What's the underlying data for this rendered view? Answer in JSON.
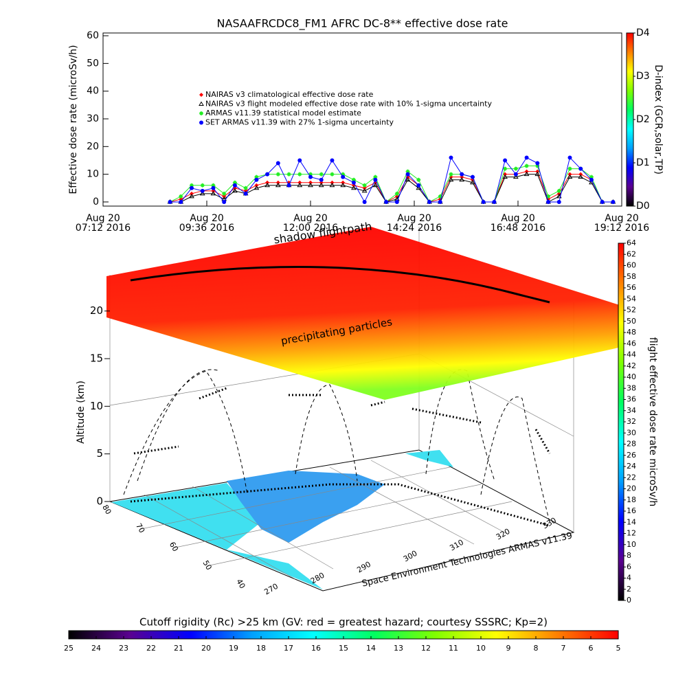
{
  "chart_data": [
    {
      "type": "line",
      "title": "NASAAFRCDC8_FM1 AFRC DC-8** effective dose rate",
      "ylabel": "Effective dose rate (microSv/h)",
      "x": [
        8.75,
        9.0,
        9.25,
        9.5,
        9.75,
        10.0,
        10.25,
        10.5,
        10.75,
        11.0,
        11.25,
        11.5,
        11.75,
        12.0,
        12.25,
        12.5,
        12.75,
        13.0,
        13.25,
        13.5,
        13.75,
        14.0,
        14.25,
        14.5,
        14.75,
        15.0,
        15.25,
        15.5,
        15.75,
        16.0,
        16.25,
        16.5,
        16.75,
        17.0,
        17.25,
        17.5,
        17.75,
        18.0,
        18.25,
        18.5,
        18.75,
        19.0
      ],
      "xlim": [
        7.2,
        19.2
      ],
      "xticks": [
        {
          "value": 7.2,
          "label": [
            "Aug 20",
            "07:12 2016"
          ]
        },
        {
          "value": 9.6,
          "label": [
            "Aug 20",
            "09:36 2016"
          ]
        },
        {
          "value": 12.0,
          "label": [
            "Aug 20",
            "12:00 2016"
          ]
        },
        {
          "value": 14.4,
          "label": [
            "Aug 20",
            "14:24 2016"
          ]
        },
        {
          "value": 16.8,
          "label": [
            "Aug 20",
            "16:48 2016"
          ]
        },
        {
          "value": 19.2,
          "label": [
            "Aug 20",
            "19:12 2016"
          ]
        }
      ],
      "ylim": [
        -1.5,
        61
      ],
      "yticks": [
        0,
        10,
        20,
        30,
        40,
        50,
        60
      ],
      "series": [
        {
          "name": "NAIRAS v3 climatological effective dose rate",
          "color": "#ff0000",
          "marker": "diamond",
          "values": [
            0,
            1,
            3,
            4,
            4,
            2,
            5,
            4,
            6,
            7,
            7,
            7,
            7,
            7,
            7,
            7,
            7,
            6,
            5,
            7,
            0,
            2,
            9,
            6,
            0,
            1,
            9,
            9,
            8,
            0,
            0,
            10,
            10,
            11,
            11,
            1,
            3,
            10,
            10,
            8,
            0,
            0
          ]
        },
        {
          "name": "NAIRAS v3 flight modeled effective dose rate with 10% 1-sigma uncertainty",
          "color": "#000000",
          "marker": "triangle",
          "values": [
            0,
            0,
            2,
            3,
            3,
            1,
            4,
            3,
            5,
            6,
            6,
            6,
            6,
            6,
            6,
            6,
            6,
            5,
            4,
            6,
            0,
            1,
            8,
            5,
            0,
            0,
            8,
            8,
            7,
            0,
            0,
            9,
            9,
            10,
            10,
            0,
            2,
            9,
            9,
            7,
            0,
            0
          ]
        },
        {
          "name": "ARMAS v11.39 statistical model estimate",
          "color": "#22ee22",
          "marker": "asterisk",
          "values": [
            0,
            2,
            6,
            6,
            6,
            3,
            7,
            5,
            9,
            10,
            10,
            10,
            10,
            10,
            10,
            10,
            10,
            8,
            6,
            9,
            0,
            3,
            11,
            8,
            0,
            2,
            10,
            10,
            9,
            0,
            0,
            12,
            12,
            13,
            13,
            2,
            4,
            12,
            12,
            9,
            0,
            0
          ]
        },
        {
          "name": "SET ARMAS v11.39 with 27% 1-sigma uncertainty",
          "color": "#0000ff",
          "marker": "circle",
          "values": [
            0,
            0,
            5,
            4,
            5,
            0,
            6,
            3,
            8,
            10,
            14,
            6,
            15,
            9,
            8,
            15,
            9,
            7,
            0,
            8,
            0,
            0,
            10,
            6,
            0,
            0,
            16,
            10,
            9,
            0,
            0,
            15,
            10,
            16,
            14,
            0,
            0,
            16,
            12,
            8,
            0,
            0
          ]
        }
      ]
    },
    {
      "type": "colorbar",
      "orientation": "vertical",
      "label": "D-index (GCR,solar,TP)",
      "colors": [
        "#000000",
        "#5a0090",
        "#0000ff",
        "#00a0ff",
        "#00ffff",
        "#00ff60",
        "#80ff00",
        "#ffff00",
        "#ff8000",
        "#ff0000"
      ],
      "ylim": [
        0,
        4
      ],
      "yticks": [
        {
          "value": 0,
          "label": "D0"
        },
        {
          "value": 1,
          "label": "D1"
        },
        {
          "value": 2,
          "label": "D2"
        },
        {
          "value": 3,
          "label": "D3"
        },
        {
          "value": 4,
          "label": "D4"
        }
      ]
    },
    {
      "type": "surface3d",
      "annotations": [
        "shadow flightpath",
        "precipitating particles"
      ],
      "zlabel": "Altitude (km)",
      "zlim": [
        0,
        22
      ],
      "zticks": [
        0,
        5,
        10,
        15,
        20
      ],
      "ylim": [
        80,
        40
      ],
      "yticks": [
        80,
        70,
        60,
        50,
        40
      ],
      "xlim": [
        270,
        330
      ],
      "xticks": [
        270,
        280,
        290,
        300,
        310,
        320,
        330
      ],
      "credit": "Space Environment Technologies ARMAS v11.39"
    },
    {
      "type": "colorbar",
      "orientation": "vertical",
      "label": "flight effective dose rate microSv/h",
      "colors": [
        "#000000",
        "#5a0090",
        "#0000ff",
        "#00a0ff",
        "#00ffff",
        "#00ff60",
        "#80ff00",
        "#ffff00",
        "#ff8000",
        "#ff0000"
      ],
      "ylim": [
        0,
        64
      ],
      "yticks": [
        0,
        2,
        4,
        6,
        8,
        10,
        12,
        14,
        16,
        18,
        20,
        22,
        24,
        26,
        28,
        30,
        32,
        34,
        36,
        38,
        40,
        42,
        44,
        46,
        48,
        50,
        52,
        54,
        56,
        58,
        60,
        62,
        64
      ]
    },
    {
      "type": "colorbar",
      "orientation": "horizontal",
      "label": "Cutoff rigidity (Rc) >25 km (GV: red = greatest hazard; courtesy SSSRC; Kp=2)",
      "colors": [
        "#000000",
        "#5a0090",
        "#0000ff",
        "#00a0ff",
        "#00ffff",
        "#00ff60",
        "#80ff00",
        "#ffff00",
        "#ff8000",
        "#ff0000"
      ],
      "xlim": [
        25,
        5
      ],
      "xticks": [
        25,
        24,
        23,
        22,
        21,
        20,
        19,
        18,
        17,
        16,
        15,
        14,
        13,
        12,
        11,
        10,
        9,
        8,
        7,
        6,
        5
      ]
    }
  ]
}
